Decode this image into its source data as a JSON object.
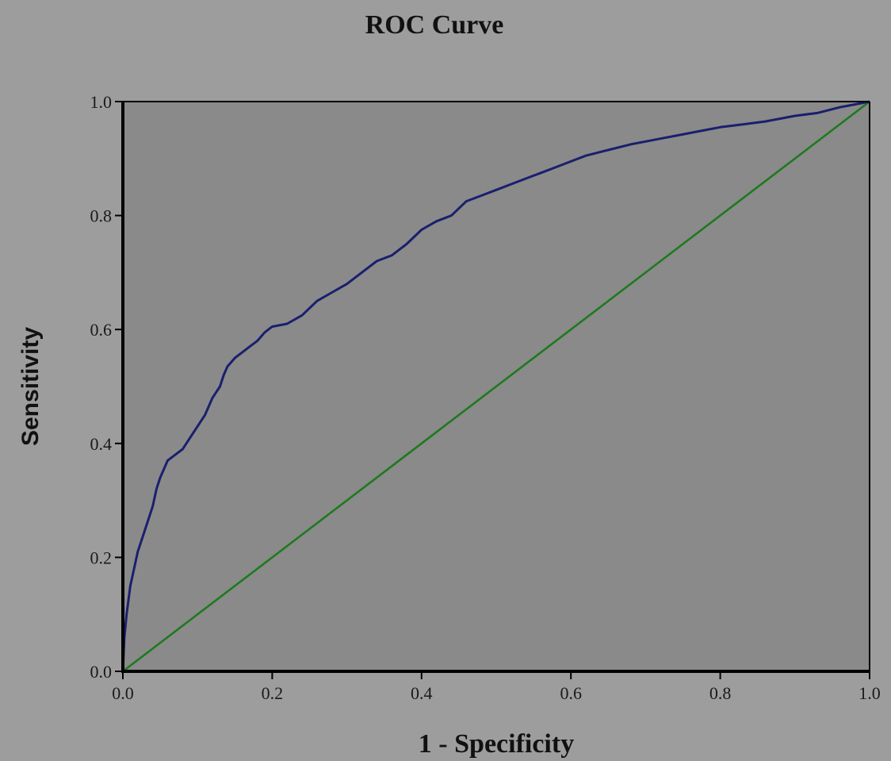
{
  "chart_data": {
    "type": "line",
    "title": "ROC Curve",
    "xlabel": "1 - Specificity",
    "ylabel": "Sensitivity",
    "xlim": [
      0,
      1
    ],
    "ylim": [
      0,
      1
    ],
    "xticks": [
      "0.0",
      "0.2",
      "0.4",
      "0.6",
      "0.8",
      "1.0"
    ],
    "yticks": [
      "0.0",
      "0.2",
      "0.4",
      "0.6",
      "0.8",
      "1.0"
    ],
    "grid": false,
    "colors": {
      "plot_background": "#8a8a8a",
      "page_background": "#9d9d9d"
    },
    "series": [
      {
        "color": "#1a1f6e",
        "x": [
          0,
          0.002,
          0.005,
          0.01,
          0.015,
          0.02,
          0.03,
          0.04,
          0.045,
          0.05,
          0.06,
          0.07,
          0.08,
          0.09,
          0.1,
          0.11,
          0.12,
          0.13,
          0.135,
          0.14,
          0.15,
          0.16,
          0.17,
          0.18,
          0.19,
          0.2,
          0.22,
          0.24,
          0.26,
          0.28,
          0.3,
          0.32,
          0.34,
          0.36,
          0.38,
          0.4,
          0.42,
          0.44,
          0.46,
          0.48,
          0.5,
          0.52,
          0.54,
          0.56,
          0.58,
          0.6,
          0.62,
          0.65,
          0.68,
          0.7,
          0.72,
          0.74,
          0.76,
          0.78,
          0.8,
          0.83,
          0.86,
          0.9,
          0.93,
          0.96,
          0.98,
          1.0
        ],
        "y": [
          0,
          0.06,
          0.1,
          0.15,
          0.18,
          0.21,
          0.25,
          0.29,
          0.32,
          0.34,
          0.37,
          0.38,
          0.39,
          0.41,
          0.43,
          0.45,
          0.48,
          0.5,
          0.52,
          0.535,
          0.55,
          0.56,
          0.57,
          0.58,
          0.595,
          0.605,
          0.61,
          0.625,
          0.65,
          0.665,
          0.68,
          0.7,
          0.72,
          0.73,
          0.75,
          0.775,
          0.79,
          0.8,
          0.825,
          0.835,
          0.845,
          0.855,
          0.865,
          0.875,
          0.885,
          0.895,
          0.905,
          0.915,
          0.925,
          0.93,
          0.935,
          0.94,
          0.945,
          0.95,
          0.955,
          0.96,
          0.965,
          0.975,
          0.98,
          0.99,
          0.995,
          1.0
        ]
      },
      {
        "color": "#1e7a1e",
        "x": [
          0,
          1
        ],
        "y": [
          0,
          1
        ]
      }
    ]
  }
}
